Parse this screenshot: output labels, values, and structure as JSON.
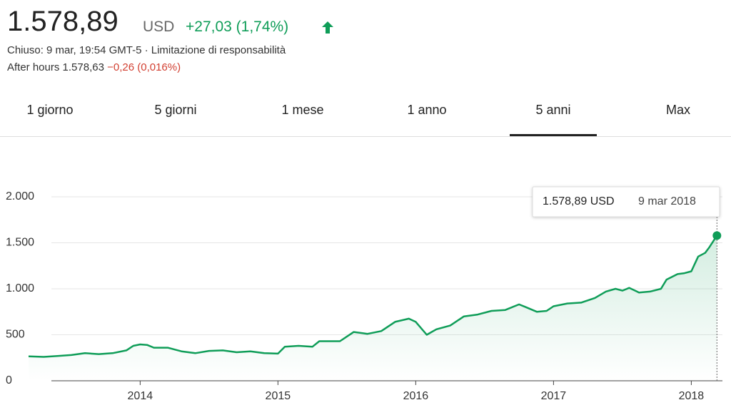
{
  "header": {
    "price": "1.578,89",
    "currency": "USD",
    "change": "+27,03 (1,74%)",
    "status": "Chiuso: 9 mar, 19:54 GMT-5 · Limitazione di responsabilità",
    "after_hours": "After hours 1.578,63",
    "after_change": "−0,26 (0,016%)"
  },
  "tabs": [
    "1 giorno",
    "5 giorni",
    "1 mese",
    "1 anno",
    "5 anni",
    "Max"
  ],
  "selected_tab": 4,
  "tooltip": {
    "price": "1.578,89 USD",
    "date": "9 mar 2018"
  },
  "chart_data": {
    "type": "line",
    "color": "#0f9d58",
    "grid": true,
    "x": [
      2013.19,
      2013.3,
      2013.4,
      2013.5,
      2013.6,
      2013.7,
      2013.8,
      2013.9,
      2013.95,
      2014.0,
      2014.05,
      2014.1,
      2014.2,
      2014.3,
      2014.4,
      2014.5,
      2014.6,
      2014.7,
      2014.8,
      2014.9,
      2015.0,
      2015.05,
      2015.15,
      2015.25,
      2015.3,
      2015.45,
      2015.55,
      2015.65,
      2015.75,
      2015.85,
      2015.95,
      2016.0,
      2016.08,
      2016.15,
      2016.25,
      2016.35,
      2016.45,
      2016.55,
      2016.65,
      2016.75,
      2016.8,
      2016.88,
      2016.95,
      2017.0,
      2017.1,
      2017.2,
      2017.3,
      2017.38,
      2017.45,
      2017.5,
      2017.55,
      2017.62,
      2017.7,
      2017.78,
      2017.82,
      2017.9,
      2017.95,
      2018.0,
      2018.05,
      2018.1,
      2018.13,
      2018.186
    ],
    "values": [
      265,
      260,
      270,
      280,
      300,
      290,
      300,
      330,
      380,
      395,
      390,
      360,
      360,
      320,
      300,
      325,
      330,
      310,
      320,
      300,
      295,
      370,
      380,
      370,
      430,
      430,
      530,
      510,
      540,
      640,
      675,
      640,
      500,
      560,
      600,
      700,
      720,
      760,
      770,
      830,
      800,
      750,
      760,
      810,
      840,
      850,
      900,
      970,
      1000,
      980,
      1010,
      960,
      970,
      1000,
      1100,
      1160,
      1170,
      1190,
      1350,
      1390,
      1450,
      1578.89
    ],
    "xlim": [
      2013.19,
      2018.2
    ],
    "xticks": [
      2014,
      2015,
      2016,
      2017,
      2018
    ],
    "ylim": [
      0,
      2000
    ],
    "yticks": [
      0,
      500,
      {
        "value": 1000,
        "label": "1.000"
      },
      {
        "value": 1500,
        "label": "1.500"
      },
      {
        "value": 2000,
        "label": "2.000"
      }
    ]
  }
}
